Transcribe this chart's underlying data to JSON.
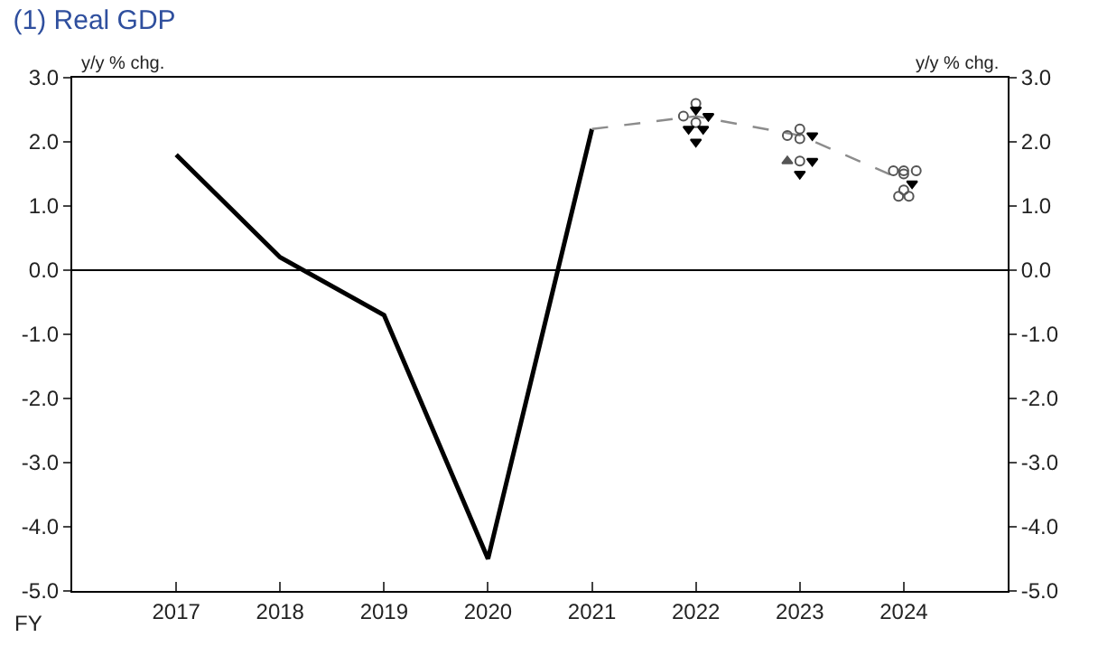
{
  "chart_data": {
    "type": "line",
    "title": "(1) Real GDP",
    "ylabel": "y/y % chg.",
    "y2label": "y/y % chg.",
    "x": [
      2017,
      2018,
      2019,
      2020,
      2021,
      2022,
      2023,
      2024
    ],
    "xlim": [
      2016,
      2025
    ],
    "xticks": [
      2017,
      2018,
      2019,
      2020,
      2021,
      2022,
      2023,
      2024
    ],
    "series": [
      {
        "color": "#000000",
        "line_style": "solid",
        "values": [
          1.8,
          0.2,
          -0.7,
          -4.5,
          2.2,
          null,
          null,
          null
        ]
      },
      {
        "color": "#8c8c8c",
        "line_style": "dashed",
        "values": [
          null,
          null,
          null,
          null,
          2.2,
          2.4,
          2.1,
          1.4
        ]
      },
      {
        "type": "scatter",
        "color": "#555555",
        "marker": "circle",
        "x": [
          2022,
          2021.88,
          2022,
          2023,
          2022.88,
          2023,
          2023,
          2023.9,
          2024,
          2024.12,
          2024,
          2024,
          2023.95,
          2024.05
        ],
        "values": [
          2.6,
          2.4,
          2.3,
          2.2,
          2.1,
          2.05,
          1.7,
          1.55,
          1.55,
          1.55,
          1.5,
          1.25,
          1.15,
          1.15
        ]
      },
      {
        "type": "scatter",
        "color": "#000000",
        "marker": "triangle-down",
        "x": [
          2022,
          2022.12,
          2021.93,
          2022.07,
          2022,
          2023.12,
          2023.12,
          2023,
          2024.08
        ],
        "values": [
          2.5,
          2.4,
          2.2,
          2.2,
          2.0,
          2.1,
          1.7,
          1.5,
          1.35
        ]
      },
      {
        "type": "scatter",
        "color": "#555555",
        "marker": "triangle",
        "x": [
          2022.88
        ],
        "values": [
          1.7
        ]
      }
    ],
    "ylim": [
      -5,
      3
    ],
    "yticks": [
      {
        "value": -5,
        "label": "-5.0"
      },
      {
        "value": -4,
        "label": "-4.0"
      },
      {
        "value": -3,
        "label": "-3.0"
      },
      {
        "value": -2,
        "label": "-2.0"
      },
      {
        "value": -1,
        "label": "-1.0"
      },
      {
        "value": 0,
        "label": "0.0"
      },
      {
        "value": 1,
        "label": "1.0"
      },
      {
        "value": 2,
        "label": "2.0"
      },
      {
        "value": 3,
        "label": "3.0"
      }
    ],
    "y2lim": [
      -5,
      3
    ],
    "y2ticks": [
      {
        "value": -5,
        "label": "-5.0"
      },
      {
        "value": -4,
        "label": "-4.0"
      },
      {
        "value": -3,
        "label": "-3.0"
      },
      {
        "value": -2,
        "label": "-2.0"
      },
      {
        "value": -1,
        "label": "-1.0"
      },
      {
        "value": 0,
        "label": "0.0"
      },
      {
        "value": 1,
        "label": "1.0"
      },
      {
        "value": 2,
        "label": "2.0"
      },
      {
        "value": 3,
        "label": "3.0"
      }
    ],
    "ref_lines": [
      {
        "axis": "y",
        "value": 0,
        "color": "#000000",
        "line_style": "solid"
      }
    ],
    "annotations": [
      "FY"
    ],
    "legend": false
  }
}
